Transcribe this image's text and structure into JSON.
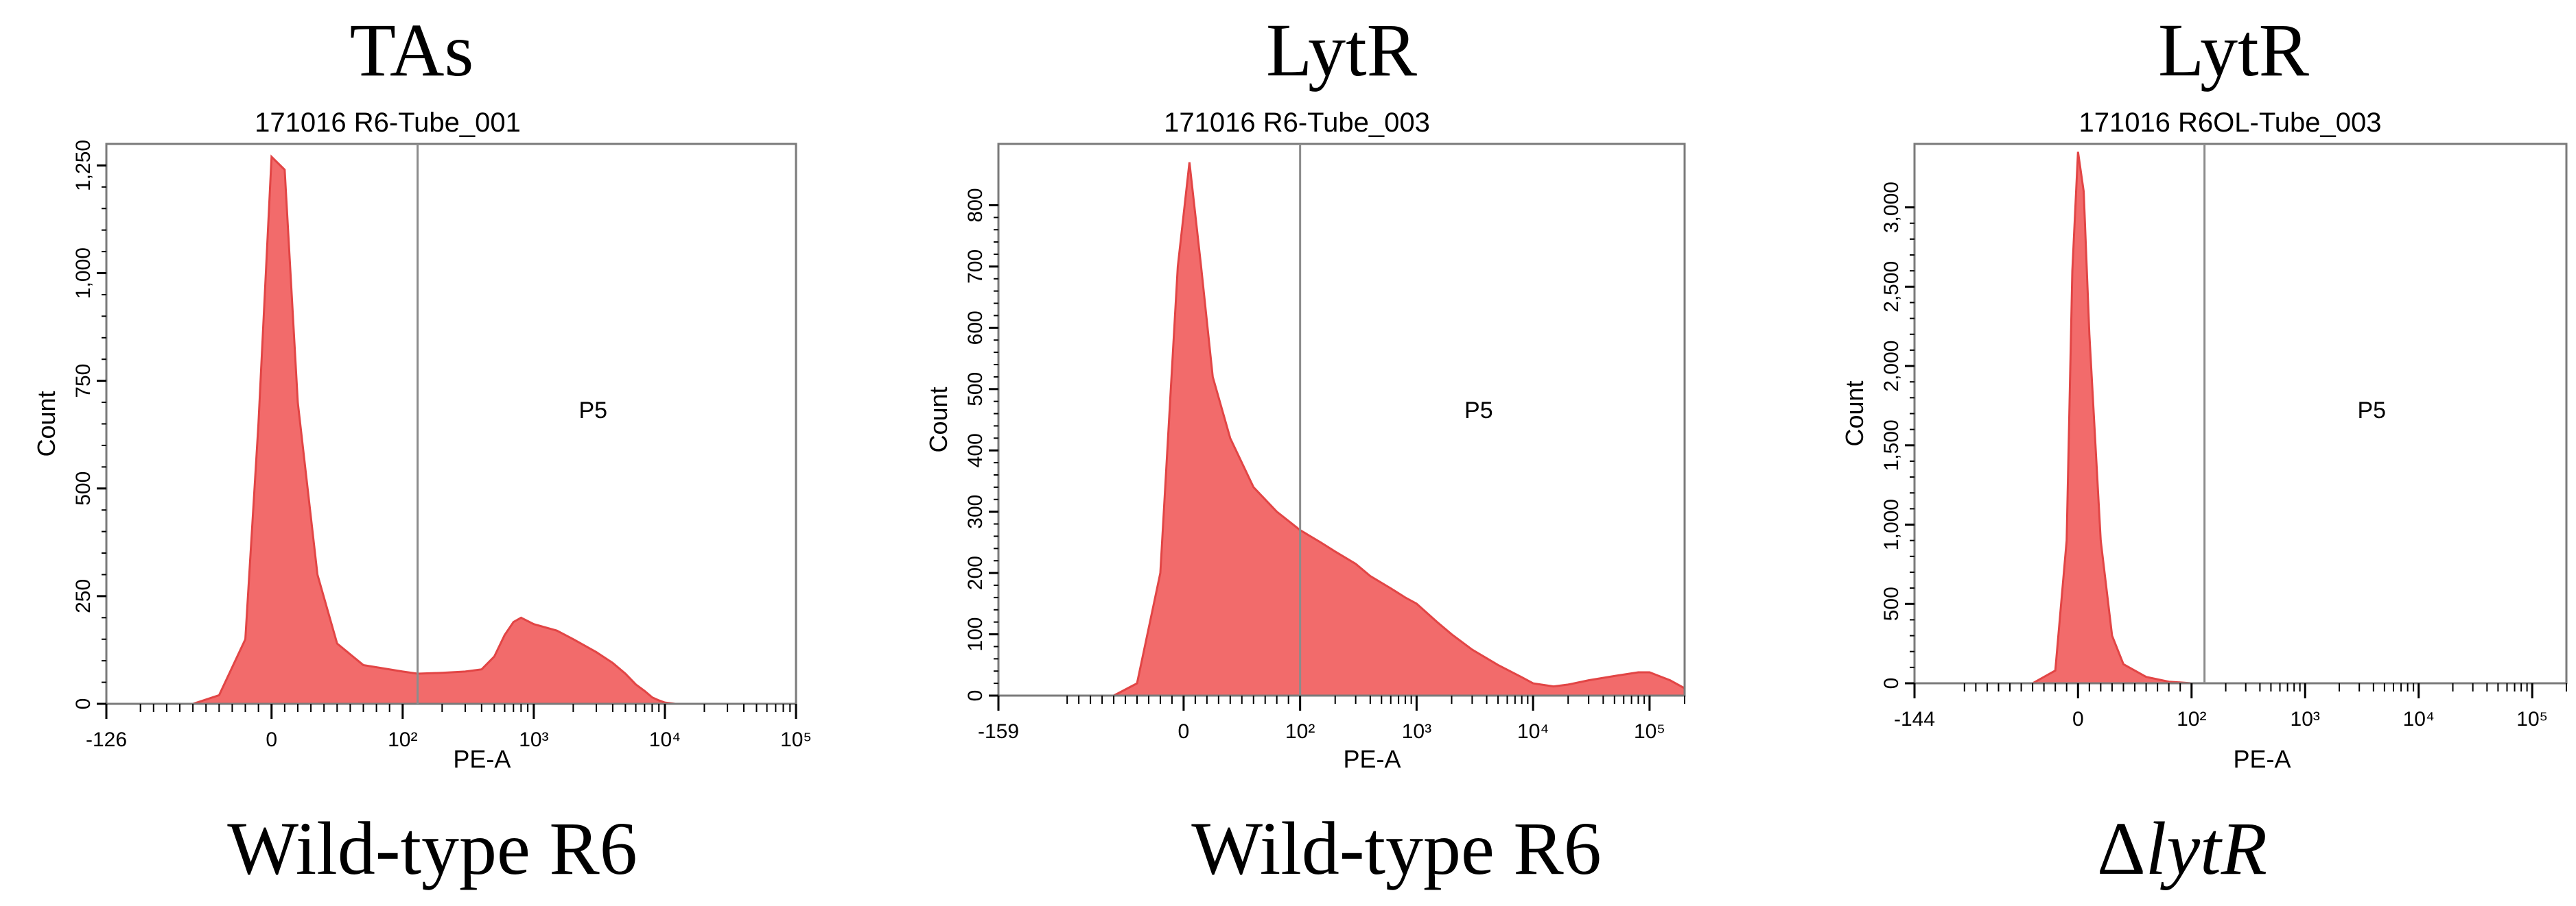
{
  "figure": {
    "background": "#ffffff",
    "fill_color": "#f26b6b",
    "stroke_color": "#e24545",
    "frame_color": "#7a7a7a",
    "gate_color": "#8c8c8c"
  },
  "chart_data": [
    {
      "type": "area",
      "top_label": "TAs",
      "title": "171016 R6-Tube_001",
      "bottom_label": "Wild-type R6",
      "xlabel": "PE-A",
      "ylabel": "Count",
      "x_scale": "biexponential",
      "xlim": [
        -126,
        100000
      ],
      "ylim": [
        0,
        1300
      ],
      "x_ticks": [
        "-126",
        "0",
        "10²",
        "10³",
        "10⁴",
        "10⁵"
      ],
      "y_ticks": [
        "0",
        "250",
        "500",
        "750",
        "1,000",
        "1,250"
      ],
      "y_tick_values": [
        0,
        250,
        500,
        750,
        1000,
        1250
      ],
      "gate": {
        "name": "P5",
        "x_start": 130
      },
      "grid": false,
      "x": [
        -126,
        -60,
        -40,
        -20,
        -10,
        0,
        10,
        20,
        35,
        50,
        70,
        100,
        130,
        200,
        300,
        400,
        500,
        600,
        700,
        800,
        1000,
        1500,
        2000,
        3000,
        4000,
        5000,
        6000,
        7000,
        8000,
        9000,
        10000,
        12000,
        100000
      ],
      "y": [
        0,
        0,
        20,
        150,
        650,
        1270,
        1240,
        700,
        300,
        140,
        90,
        75,
        70,
        72,
        75,
        80,
        110,
        160,
        190,
        200,
        185,
        170,
        150,
        120,
        95,
        70,
        45,
        30,
        15,
        8,
        3,
        0,
        0
      ]
    },
    {
      "type": "area",
      "top_label": "LytR",
      "title": "171016 R6-Tube_003",
      "bottom_label": "Wild-type R6",
      "xlabel": "PE-A",
      "ylabel": "Count",
      "x_scale": "biexponential",
      "xlim": [
        -159,
        200000
      ],
      "ylim": [
        0,
        900
      ],
      "x_ticks": [
        "-159",
        "0",
        "10²",
        "10³",
        "10⁴",
        "10⁵"
      ],
      "y_ticks": [
        "0",
        "100",
        "200",
        "300",
        "400",
        "500",
        "600",
        "700",
        "800"
      ],
      "y_tick_values": [
        0,
        100,
        200,
        300,
        400,
        500,
        600,
        700,
        800
      ],
      "gate": {
        "name": "P5",
        "x_start": 100
      },
      "grid": false,
      "x": [
        -159,
        -60,
        -40,
        -20,
        -5,
        5,
        15,
        25,
        40,
        60,
        80,
        100,
        150,
        200,
        300,
        400,
        600,
        800,
        1000,
        1500,
        2000,
        3000,
        5000,
        8000,
        10000,
        15000,
        20000,
        30000,
        50000,
        80000,
        100000,
        150000,
        200000
      ],
      "y": [
        0,
        0,
        20,
        200,
        700,
        870,
        700,
        520,
        420,
        340,
        300,
        270,
        250,
        235,
        215,
        195,
        175,
        160,
        150,
        120,
        100,
        75,
        50,
        30,
        20,
        15,
        18,
        25,
        32,
        38,
        38,
        25,
        12
      ]
    },
    {
      "type": "area",
      "top_label": "LytR",
      "title": "171016 R6OL-Tube_003",
      "bottom_label_prefix": "Δ",
      "bottom_label_italic": "lytR",
      "xlabel": "PE-A",
      "ylabel": "Count",
      "x_scale": "biexponential",
      "xlim": [
        -144,
        200000
      ],
      "ylim": [
        0,
        3400
      ],
      "x_ticks": [
        "-144",
        "0",
        "10²",
        "10³",
        "10⁴",
        "10⁵"
      ],
      "y_ticks": [
        "0",
        "500",
        "1,000",
        "1,500",
        "2,000",
        "2,500",
        "3,000"
      ],
      "y_tick_values": [
        0,
        500,
        1000,
        1500,
        2000,
        2500,
        3000
      ],
      "gate": {
        "name": "P5",
        "x_start": 130
      },
      "grid": false,
      "x": [
        -144,
        -40,
        -20,
        -10,
        -5,
        0,
        5,
        10,
        20,
        30,
        40,
        60,
        80,
        100,
        130,
        200000
      ],
      "y": [
        0,
        0,
        80,
        900,
        2600,
        3350,
        3100,
        2200,
        900,
        300,
        120,
        40,
        10,
        0,
        0,
        0
      ]
    }
  ]
}
